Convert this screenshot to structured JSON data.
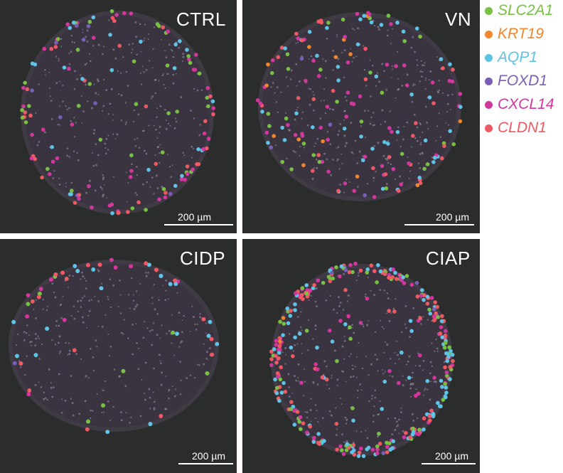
{
  "panels": [
    {
      "label": "CTRL",
      "scale_label": "200 µm"
    },
    {
      "label": "VN",
      "scale_label": "200 µm"
    },
    {
      "label": "CIDP",
      "scale_label": "200 µm"
    },
    {
      "label": "CIAP",
      "scale_label": "200 µm"
    }
  ],
  "legend": [
    {
      "gene": "SLC2A1",
      "color": "#77c044"
    },
    {
      "gene": "KRT19",
      "color": "#f0862d"
    },
    {
      "gene": "AQP1",
      "color": "#5fc3e6"
    },
    {
      "gene": "FOXD1",
      "color": "#7a5fb8"
    },
    {
      "gene": "CXCL14",
      "color": "#d1379c"
    },
    {
      "gene": "CLDN1",
      "color": "#ee5a63"
    }
  ]
}
